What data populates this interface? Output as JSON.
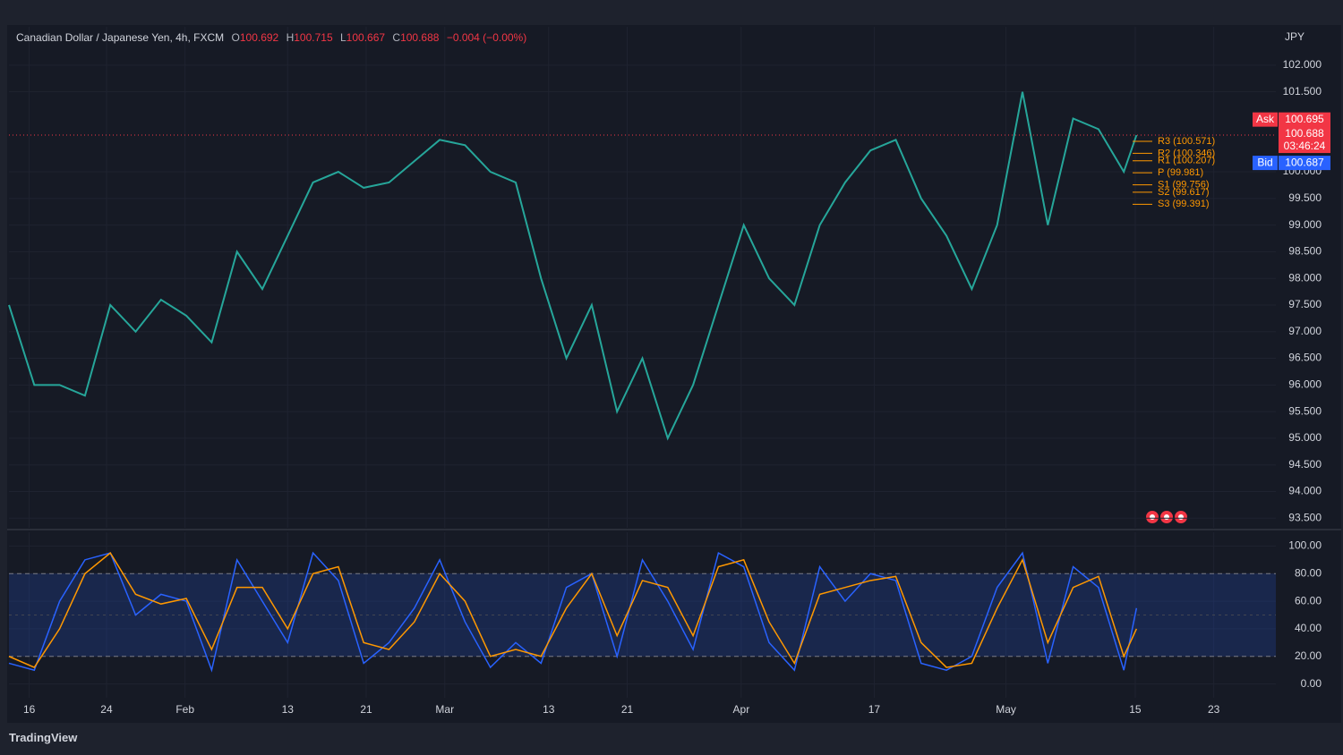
{
  "header": {
    "symbol": "Canadian Dollar / Japanese Yen, 4h, FXCM",
    "ohlc": [
      {
        "key": "O",
        "value": "100.692"
      },
      {
        "key": "H",
        "value": "100.715"
      },
      {
        "key": "L",
        "value": "100.667"
      },
      {
        "key": "C",
        "value": "100.688"
      }
    ],
    "change": "−0.004 (−0.00%)"
  },
  "chart_data": [
    {
      "type": "line",
      "unit": "JPY",
      "x": [
        0,
        2,
        4,
        6,
        8,
        10,
        12,
        14,
        16,
        18,
        20,
        22,
        24,
        26,
        28,
        30,
        32,
        34,
        36,
        38,
        40,
        42,
        44,
        46,
        48,
        50,
        52,
        54,
        56,
        58,
        60,
        62,
        64,
        66,
        68,
        70,
        72,
        74,
        76,
        78,
        80,
        82,
        84,
        86,
        88,
        89
      ],
      "series": [
        {
          "color": "#26a69a",
          "values": [
            97.5,
            96.0,
            96.0,
            95.8,
            97.5,
            97.0,
            97.6,
            97.3,
            96.8,
            98.5,
            97.8,
            98.8,
            99.8,
            100.0,
            99.7,
            99.8,
            100.2,
            100.6,
            100.5,
            100.0,
            99.8,
            98.0,
            96.5,
            97.5,
            95.5,
            96.5,
            95.0,
            96.0,
            97.5,
            99.0,
            98.0,
            97.5,
            99.0,
            99.8,
            100.4,
            100.6,
            99.5,
            98.8,
            97.8,
            99.0,
            101.5,
            99.0,
            101.0,
            100.8,
            100.0,
            100.688
          ]
        }
      ],
      "xlim": [
        0,
        100
      ],
      "xticks": [
        {
          "value": 1.6,
          "label": "16"
        },
        {
          "value": 7.7,
          "label": "24"
        },
        {
          "value": 13.9,
          "label": "Feb"
        },
        {
          "value": 22.0,
          "label": "13"
        },
        {
          "value": 28.2,
          "label": "21"
        },
        {
          "value": 34.4,
          "label": "Mar"
        },
        {
          "value": 42.6,
          "label": "13"
        },
        {
          "value": 48.8,
          "label": "21"
        },
        {
          "value": 57.8,
          "label": "Apr"
        },
        {
          "value": 68.3,
          "label": "17"
        },
        {
          "value": 78.7,
          "label": "May"
        },
        {
          "value": 88.9,
          "label": "15"
        },
        {
          "value": 95.1,
          "label": "23"
        }
      ],
      "ylim": [
        93.32,
        102.72
      ],
      "yticks": [
        {
          "value": 93.5,
          "label": "93.500"
        },
        {
          "value": 94,
          "label": "94.000"
        },
        {
          "value": 94.5,
          "label": "94.500"
        },
        {
          "value": 95,
          "label": "95.000"
        },
        {
          "value": 95.5,
          "label": "95.500"
        },
        {
          "value": 96,
          "label": "96.000"
        },
        {
          "value": 96.5,
          "label": "96.500"
        },
        {
          "value": 97,
          "label": "97.000"
        },
        {
          "value": 97.5,
          "label": "97.500"
        },
        {
          "value": 98,
          "label": "98.000"
        },
        {
          "value": 98.5,
          "label": "98.500"
        },
        {
          "value": 99,
          "label": "99.000"
        },
        {
          "value": 99.5,
          "label": "99.500"
        },
        {
          "value": 100,
          "label": "100.000"
        },
        {
          "value": 101.5,
          "label": "101.500"
        },
        {
          "value": 102,
          "label": "102.000"
        }
      ],
      "last": {
        "value": 100.688,
        "countdown": "03:46:24"
      },
      "ask": {
        "label": "Ask",
        "value": 100.695
      },
      "bid": {
        "label": "Bid",
        "value": 100.687
      },
      "pivots": [
        {
          "label": "R3 (100.571)",
          "value": 100.571
        },
        {
          "label": "R2 (100.346)",
          "value": 100.346
        },
        {
          "label": "R1 (100.207)",
          "value": 100.207
        },
        {
          "label": "P (99.981)",
          "value": 99.981
        },
        {
          "label": "S1 (99.756)",
          "value": 99.756
        },
        {
          "label": "S2 (99.617)",
          "value": 99.617
        },
        {
          "label": "S3 (99.391)",
          "value": 99.391
        }
      ]
    },
    {
      "type": "line",
      "x": [
        0,
        2,
        4,
        6,
        8,
        10,
        12,
        14,
        16,
        18,
        20,
        22,
        24,
        26,
        28,
        30,
        32,
        34,
        36,
        38,
        40,
        42,
        44,
        46,
        48,
        50,
        52,
        54,
        56,
        58,
        60,
        62,
        64,
        66,
        68,
        70,
        72,
        74,
        76,
        78,
        80,
        82,
        84,
        86,
        88,
        89
      ],
      "series": [
        {
          "color": "#2962ff",
          "values": [
            15,
            10,
            60,
            90,
            95,
            50,
            65,
            60,
            10,
            90,
            60,
            30,
            95,
            75,
            15,
            30,
            55,
            90,
            45,
            12,
            30,
            15,
            70,
            80,
            20,
            90,
            60,
            25,
            95,
            85,
            30,
            10,
            85,
            60,
            80,
            75,
            15,
            10,
            20,
            70,
            95,
            15,
            85,
            70,
            10,
            55
          ]
        },
        {
          "color": "#ff9800",
          "values": [
            20,
            12,
            40,
            80,
            95,
            65,
            58,
            62,
            25,
            70,
            70,
            40,
            80,
            85,
            30,
            25,
            45,
            80,
            60,
            20,
            25,
            20,
            55,
            80,
            35,
            75,
            70,
            35,
            85,
            90,
            45,
            15,
            65,
            70,
            75,
            78,
            30,
            12,
            15,
            55,
            90,
            30,
            70,
            78,
            20,
            40
          ]
        }
      ],
      "xlim": [
        0,
        100
      ],
      "ylim": [
        -10,
        110
      ],
      "yticks": [
        {
          "value": 0,
          "label": "0.00"
        },
        {
          "value": 20,
          "label": "20.00"
        },
        {
          "value": 40,
          "label": "40.00"
        },
        {
          "value": 60,
          "label": "60.00"
        },
        {
          "value": 80,
          "label": "80.00"
        },
        {
          "value": 100,
          "label": "100.00"
        }
      ],
      "bands": [
        20,
        80
      ]
    }
  ],
  "footer": {
    "brand": "TradingView"
  }
}
